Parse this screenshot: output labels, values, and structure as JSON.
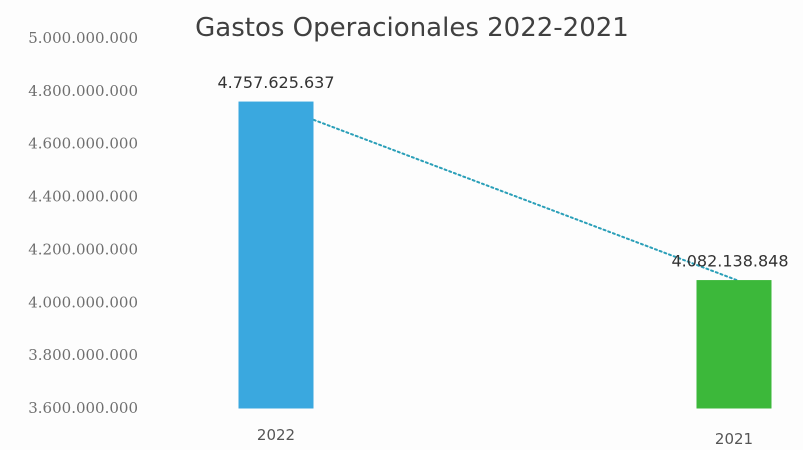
{
  "chart_data": {
    "type": "bar",
    "title": "Gastos Operacionales 2022-2021",
    "categories": [
      "2022",
      "2021"
    ],
    "values": [
      4757625637,
      4082138848
    ],
    "data_labels": [
      "4.757.625.637",
      "4.082.138.848"
    ],
    "bar_colors": [
      "#3aa8df",
      "#3cb83a"
    ],
    "trendline": {
      "style": "dotted",
      "color": "#2a9fb8"
    },
    "ylim": [
      3600000000,
      5000000000
    ],
    "yticks": [
      3600000000,
      3800000000,
      4000000000,
      4200000000,
      4400000000,
      4600000000,
      4800000000,
      5000000000
    ],
    "ytick_labels": [
      "3.600.000.000",
      "3.800.000.000",
      "4.000.000.000",
      "4.200.000.000",
      "4.400.000.000",
      "4.600.000.000",
      "4.800.000.000",
      "5.000.000.000"
    ],
    "xlabel": "",
    "ylabel": "",
    "grid": false,
    "legend": "none"
  }
}
